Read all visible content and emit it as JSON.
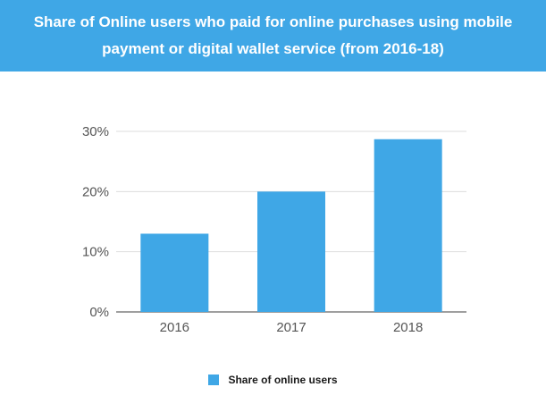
{
  "header": {
    "title_line1": "Share of Online users who paid for online purchases using mobile",
    "title_line2": "payment or digital wallet service (from 2016-18)"
  },
  "chart_data": {
    "type": "bar",
    "title": "Share of Online users who paid for online purchases using mobile payment or digital wallet service (from 2016-18)",
    "categories": [
      "2016",
      "2017",
      "2018"
    ],
    "series": [
      {
        "name": "Share of online users",
        "values": [
          13,
          20,
          28.7
        ],
        "color": "#3fa7e6"
      }
    ],
    "ylim": [
      0,
      30
    ],
    "yticks": [
      0,
      10,
      20,
      30
    ],
    "ytick_labels": [
      "0%",
      "10%",
      "20%",
      "30%"
    ],
    "grid": true,
    "legend": "bottom-center"
  }
}
